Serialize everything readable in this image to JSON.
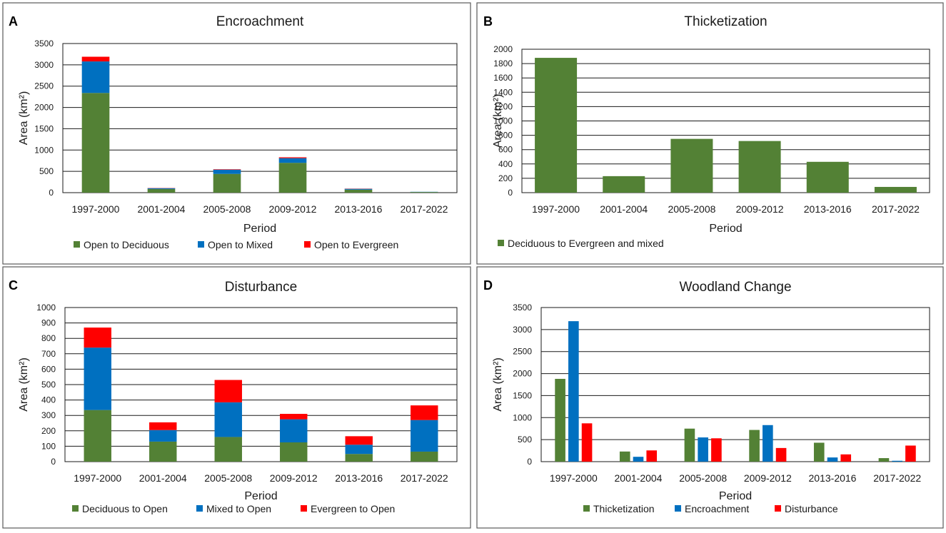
{
  "chart_data": [
    {
      "panel": "A",
      "type": "bar",
      "stacked": true,
      "title": "Encroachment",
      "xlabel": "Period",
      "ylabel": "Area (km²)",
      "ylim": [
        0,
        3500
      ],
      "yticks": [
        0,
        500,
        1000,
        1500,
        2000,
        2500,
        3000,
        3500
      ],
      "categories": [
        "1997-2000",
        "2001-2004",
        "2005-2008",
        "2009-2012",
        "2013-2016",
        "2017-2022"
      ],
      "series": [
        {
          "name": "Open to Deciduous",
          "color": "#538135",
          "values": [
            2340,
            85,
            440,
            700,
            70,
            15
          ]
        },
        {
          "name": "Open to Mixed",
          "color": "#0070c0",
          "values": [
            740,
            20,
            100,
            110,
            20,
            5
          ]
        },
        {
          "name": "Open to Evergreen",
          "color": "#ff0000",
          "values": [
            110,
            5,
            10,
            20,
            5,
            0
          ]
        }
      ]
    },
    {
      "panel": "B",
      "type": "bar",
      "stacked": true,
      "title": "Thicketization",
      "xlabel": "Period",
      "ylabel": "Area (km²)",
      "ylim": [
        0,
        2000
      ],
      "yticks": [
        0,
        200,
        400,
        600,
        800,
        1000,
        1200,
        1400,
        1600,
        1800,
        2000
      ],
      "categories": [
        "1997-2000",
        "2001-2004",
        "2005-2008",
        "2009-2012",
        "2013-2016",
        "2017-2022"
      ],
      "series": [
        {
          "name": "Deciduous to Evergreen and mixed",
          "color": "#538135",
          "values": [
            1880,
            230,
            750,
            720,
            430,
            80
          ]
        }
      ]
    },
    {
      "panel": "C",
      "type": "bar",
      "stacked": true,
      "title": "Disturbance",
      "xlabel": "Period",
      "ylabel": "Area (km²)",
      "ylim": [
        0,
        1000
      ],
      "yticks": [
        0,
        100,
        200,
        300,
        400,
        500,
        600,
        700,
        800,
        900,
        1000
      ],
      "categories": [
        "1997-2000",
        "2001-2004",
        "2005-2008",
        "2009-2012",
        "2013-2016",
        "2017-2022"
      ],
      "series": [
        {
          "name": "Deciduous to Open",
          "color": "#538135",
          "values": [
            335,
            130,
            160,
            125,
            50,
            65
          ]
        },
        {
          "name": "Mixed to Open",
          "color": "#0070c0",
          "values": [
            405,
            75,
            225,
            150,
            60,
            205
          ]
        },
        {
          "name": "Evergreen to Open",
          "color": "#ff0000",
          "values": [
            130,
            50,
            145,
            35,
            55,
            95
          ]
        }
      ]
    },
    {
      "panel": "D",
      "type": "bar",
      "stacked": false,
      "title": "Woodland Change",
      "xlabel": "Period",
      "ylabel": "Area (km²)",
      "ylim": [
        0,
        3500
      ],
      "yticks": [
        0,
        500,
        1000,
        1500,
        2000,
        2500,
        3000,
        3500
      ],
      "categories": [
        "1997-2000",
        "2001-2004",
        "2005-2008",
        "2009-2012",
        "2013-2016",
        "2017-2022"
      ],
      "series": [
        {
          "name": "Thicketization",
          "color": "#538135",
          "values": [
            1880,
            230,
            750,
            720,
            430,
            80
          ]
        },
        {
          "name": "Encroachment",
          "color": "#0070c0",
          "values": [
            3190,
            110,
            550,
            830,
            95,
            20
          ]
        },
        {
          "name": "Disturbance",
          "color": "#ff0000",
          "values": [
            870,
            255,
            530,
            310,
            165,
            365
          ]
        }
      ]
    }
  ]
}
